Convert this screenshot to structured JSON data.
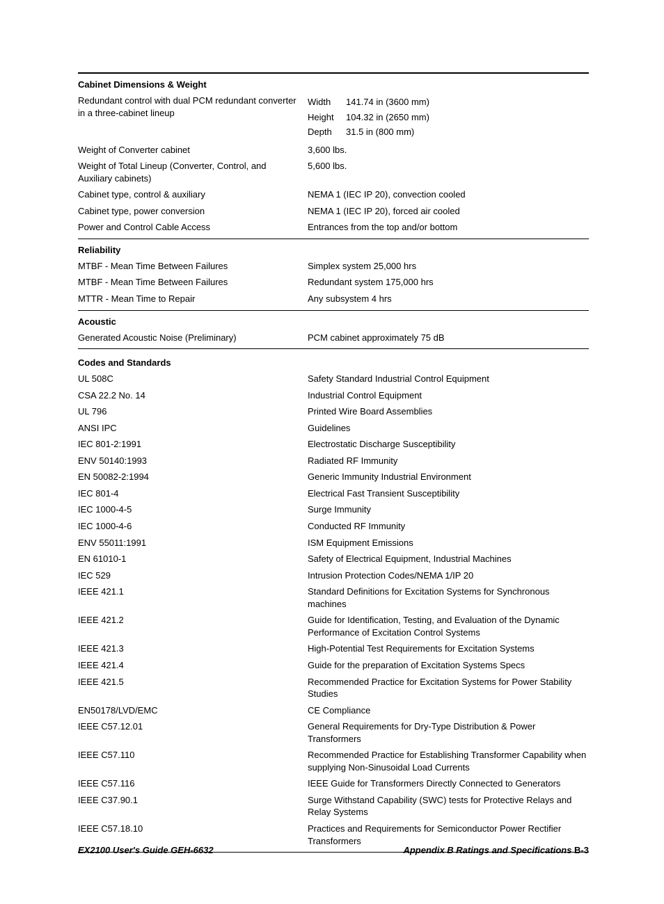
{
  "sections": [
    {
      "title": "Cabinet Dimensions & Weight",
      "border": "thick",
      "rows": [
        {
          "label": "Redundant control with dual PCM redundant converter in a three-cabinet lineup",
          "dims": [
            {
              "name": "Width",
              "val": "141.74 in (3600 mm)"
            },
            {
              "name": "Height",
              "val": "104.32 in (2650 mm)"
            },
            {
              "name": "Depth",
              "val": "31.5 in (800 mm)"
            }
          ]
        },
        {
          "label": "Weight of Converter cabinet",
          "value": "3,600 lbs."
        },
        {
          "label": "Weight of Total Lineup (Converter, Control,  and Auxiliary cabinets)",
          "value": "5,600 lbs."
        },
        {
          "label": "Cabinet type, control & auxiliary",
          "value": "NEMA 1 (IEC IP 20), convection cooled"
        },
        {
          "label": "Cabinet type, power conversion",
          "value": "NEMA 1 (IEC IP 20), forced air cooled"
        },
        {
          "label": "Power and Control Cable Access",
          "value": "Entrances from the top and/or bottom"
        }
      ]
    },
    {
      "title": "Reliability",
      "border": "thin",
      "rows": [
        {
          "label": "MTBF - Mean Time Between Failures",
          "value": "Simplex system 25,000 hrs"
        },
        {
          "label": "MTBF - Mean Time Between Failures",
          "value": "Redundant system 175,000 hrs"
        },
        {
          "label": "MTTR - Mean Time to Repair",
          "value": "Any subsystem 4 hrs"
        }
      ]
    },
    {
      "title": "Acoustic",
      "border": "thin",
      "bottomRule": true,
      "rows": [
        {
          "label": "Generated Acoustic Noise (Preliminary)",
          "value": "PCM cabinet approximately 75 dB"
        }
      ]
    },
    {
      "title": "Codes and Standards",
      "border": "none",
      "bottomRule": true,
      "rows": [
        {
          "label": "UL 508C",
          "value": "Safety Standard Industrial Control Equipment"
        },
        {
          "label": "CSA 22.2 No. 14",
          "value": "Industrial Control Equipment"
        },
        {
          "label": "UL 796",
          "value": "Printed Wire Board Assemblies"
        },
        {
          "label": "ANSI IPC",
          "value": "Guidelines"
        },
        {
          "label": "IEC 801-2:1991",
          "value": "Electrostatic Discharge Susceptibility"
        },
        {
          "label": "ENV 50140:1993",
          "value": "Radiated RF Immunity"
        },
        {
          "label": "EN 50082-2:1994",
          "value": "Generic Immunity Industrial Environment"
        },
        {
          "label": "IEC 801-4",
          "value": "Electrical Fast Transient Susceptibility"
        },
        {
          "label": "IEC 1000-4-5",
          "value": "Surge Immunity"
        },
        {
          "label": "IEC 1000-4-6",
          "value": "Conducted RF Immunity"
        },
        {
          "label": "ENV 55011:1991",
          "value": "ISM Equipment Emissions"
        },
        {
          "label": "EN 61010-1",
          "value": "Safety of Electrical Equipment, Industrial Machines"
        },
        {
          "label": "IEC 529",
          "value": "Intrusion Protection Codes/NEMA 1/IP 20"
        },
        {
          "label": "IEEE 421.1",
          "value": "Standard Definitions for Excitation Systems for Synchronous machines"
        },
        {
          "label": "IEEE 421.2",
          "value": "Guide for Identification, Testing, and Evaluation of the Dynamic Performance of Excitation Control Systems"
        },
        {
          "label": "IEEE 421.3",
          "value": "High-Potential Test Requirements for Excitation Systems"
        },
        {
          "label": "IEEE 421.4",
          "value": "Guide for the preparation of Excitation Systems Specs"
        },
        {
          "label": "IEEE 421.5",
          "value": "Recommended Practice for Excitation Systems for Power Stability Studies"
        },
        {
          "label": "EN50178/LVD/EMC",
          "value": "CE Compliance"
        },
        {
          "label": "IEEE C57.12.01",
          "value": "General Requirements for Dry-Type Distribution & Power Transformers"
        },
        {
          "label": "IEEE C57.110",
          "value": "Recommended Practice for Establishing Transformer Capability when supplying Non-Sinusoidal Load Currents"
        },
        {
          "label": "IEEE C57.116",
          "value": "IEEE Guide for Transformers Directly Connected to Generators"
        },
        {
          "label": "IEEE C37.90.1",
          "value": "Surge Withstand Capability (SWC) tests for Protective Relays and Relay Systems"
        },
        {
          "label": "IEEE C57.18.10",
          "value": "Practices and Requirements for Semiconductor Power Rectifier Transformers"
        }
      ]
    }
  ],
  "footer": {
    "left": "EX2100 User's Guide  GEH-6632",
    "rightPrefix": "Appendix B  Ratings and Specifications   ",
    "pageNum": "B-3"
  }
}
